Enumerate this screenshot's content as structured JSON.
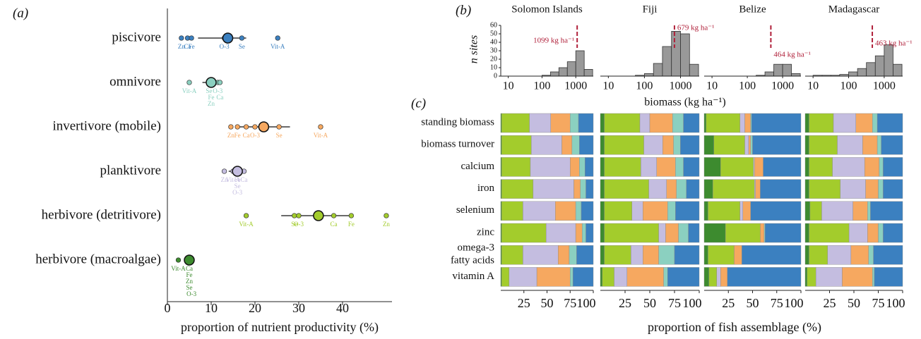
{
  "chart_data": [
    {
      "type": "dot",
      "panel_label": "(a)",
      "xlabel": "proportion of nutrient productivity (%)",
      "xlim": [
        0,
        51.3
      ],
      "xticks": [
        0,
        10,
        20,
        30,
        40
      ],
      "categories": [
        "piscivore",
        "omnivore",
        "invertivore (mobile)",
        "planktivore",
        "herbivore (detritivore)",
        "herbivore (macroalgae)"
      ],
      "colors": [
        "#3b80c0",
        "#8bd0c0",
        "#f6a860",
        "#c4bde0",
        "#a3cc2c",
        "#3d8b2f"
      ],
      "means": [
        13.8,
        10,
        22,
        16,
        34.5,
        5
      ],
      "lows": [
        7,
        8,
        16,
        14,
        26,
        4
      ],
      "highs": [
        18,
        12,
        28,
        18,
        42,
        6
      ],
      "points": [
        {
          "labels": [
            "Zn",
            "Ca",
            "Fe",
            "Se",
            "O-3",
            "Vit-A"
          ],
          "values": [
            3.2,
            4.6,
            5.5,
            17,
            13,
            25.2
          ]
        },
        {
          "labels": [
            "Vit-A",
            "Se",
            "O-3",
            "Fe",
            "Zn",
            "Ca"
          ],
          "values": [
            5,
            9.5,
            11.5,
            10,
            10,
            12
          ]
        },
        {
          "labels": [
            "Zn",
            "Fe",
            "Ca",
            "O-3",
            "Se",
            "Vit-A"
          ],
          "values": [
            14.5,
            16,
            18,
            20,
            25.5,
            35
          ]
        },
        {
          "labels": [
            "Zn",
            "Vit-A",
            "Fe",
            "Se",
            "O-3",
            "Ca"
          ],
          "values": [
            13,
            15,
            16,
            16,
            16,
            17.5
          ]
        },
        {
          "labels": [
            "Vit-A",
            "Se",
            "O-3",
            "Ca",
            "Fe",
            "Zn"
          ],
          "values": [
            18,
            29,
            30,
            38,
            42,
            50
          ]
        },
        {
          "labels": [
            "Vit-A",
            "Ca",
            "Fe",
            "Zn",
            "O-3",
            "Se"
          ],
          "values": [
            2.5,
            5,
            5,
            5,
            5.5,
            5
          ]
        }
      ]
    },
    {
      "type": "histogram",
      "panel_label": "(b)",
      "ylabel": "n sites",
      "xlabel": "biomass (kg ha⁻¹)",
      "log_x": true,
      "xlim": [
        6,
        3300
      ],
      "xticks": [
        10,
        100,
        1000
      ],
      "ylim": [
        0,
        65
      ],
      "yticks": [
        0,
        10,
        20,
        30,
        40,
        50,
        60
      ],
      "color": "#999999",
      "ref_color": "#b0203a",
      "bins": [
        10,
        18,
        32,
        56,
        100,
        178,
        316,
        562,
        1000,
        1778,
        3162
      ],
      "panels": [
        {
          "title": "Solomon Islands",
          "counts": [
            0,
            0,
            0,
            0,
            1,
            5,
            10,
            17,
            30,
            8
          ],
          "ref": 1099,
          "ref_label": "1099 kg ha⁻¹"
        },
        {
          "title": "Fiji",
          "counts": [
            0,
            0,
            0,
            1,
            3,
            15,
            35,
            53,
            50,
            14
          ],
          "ref": 679,
          "ref_label": "679 kg ha⁻¹"
        },
        {
          "title": "Belize",
          "counts": [
            0,
            0,
            0,
            0,
            0,
            1,
            5,
            14,
            14,
            3
          ],
          "ref": 464,
          "ref_label": "464 kg ha⁻¹"
        },
        {
          "title": "Madagascar",
          "counts": [
            1,
            1,
            1,
            2,
            5,
            9,
            16,
            24,
            37,
            14
          ],
          "ref": 463,
          "ref_label": "463 kg ha⁻¹"
        }
      ]
    },
    {
      "type": "stacked_bar",
      "panel_label": "(c)",
      "xlabel": "proportion of fish assemblage (%)",
      "xlim": [
        0,
        100
      ],
      "xticks": [
        25,
        50,
        75,
        100
      ],
      "categories": [
        "standing biomass",
        "biomass turnover",
        "calcium",
        "iron",
        "selenium",
        "zinc",
        [
          "omega-3",
          "fatty acids"
        ],
        "vitamin A"
      ],
      "colors": [
        "#3d8b2f",
        "#a3cc2c",
        "#c4bde0",
        "#f6a860",
        "#8bd0c0",
        "#3b80c0"
      ],
      "panels": [
        {
          "series": [
            [
              1,
              1,
              1,
              1,
              1,
              1,
              1,
              1
            ],
            [
              30,
              32,
              31,
              34,
              23,
              48,
              23,
              8
            ],
            [
              23,
              33,
              43,
              44,
              35,
              32,
              38,
              30
            ],
            [
              21,
              11,
              10,
              7,
              22,
              7,
              12,
              36
            ],
            [
              9,
              8,
              6,
              6,
              6,
              4,
              8,
              3
            ],
            [
              16,
              15,
              9,
              8,
              13,
              8,
              18,
              22
            ]
          ]
        },
        {
          "series": [
            [
              4,
              4,
              4,
              4,
              4,
              4,
              4,
              2
            ],
            [
              36,
              40,
              37,
              45,
              28,
              55,
              27,
              12
            ],
            [
              10,
              19,
              16,
              18,
              11,
              7,
              12,
              13
            ],
            [
              23,
              11,
              19,
              10,
              25,
              13,
              16,
              37
            ],
            [
              11,
              7,
              8,
              10,
              8,
              10,
              16,
              4
            ],
            [
              16,
              19,
              16,
              13,
              24,
              11,
              25,
              32
            ]
          ]
        },
        {
          "series": [
            [
              2,
              10,
              17,
              9,
              4,
              22,
              4,
              5
            ],
            [
              35,
              32,
              34,
              43,
              33,
              36,
              27,
              8
            ],
            [
              5,
              4,
              1,
              1,
              3,
              0,
              0,
              4
            ],
            [
              6,
              2,
              9,
              5,
              8,
              4,
              8,
              7
            ],
            [
              1,
              2,
              0,
              0,
              0,
              1,
              0,
              0
            ],
            [
              51,
              50,
              39,
              42,
              52,
              37,
              61,
              76
            ]
          ]
        },
        {
          "series": [
            [
              4,
              4,
              4,
              4,
              5,
              4,
              4,
              2
            ],
            [
              25,
              29,
              24,
              32,
              12,
              41,
              19,
              9
            ],
            [
              23,
              26,
              33,
              26,
              32,
              19,
              24,
              27
            ],
            [
              17,
              15,
              15,
              13,
              15,
              11,
              18,
              31
            ],
            [
              5,
              4,
              4,
              5,
              3,
              5,
              5,
              2
            ],
            [
              26,
              22,
              20,
              20,
              33,
              20,
              30,
              29
            ]
          ]
        }
      ]
    }
  ]
}
